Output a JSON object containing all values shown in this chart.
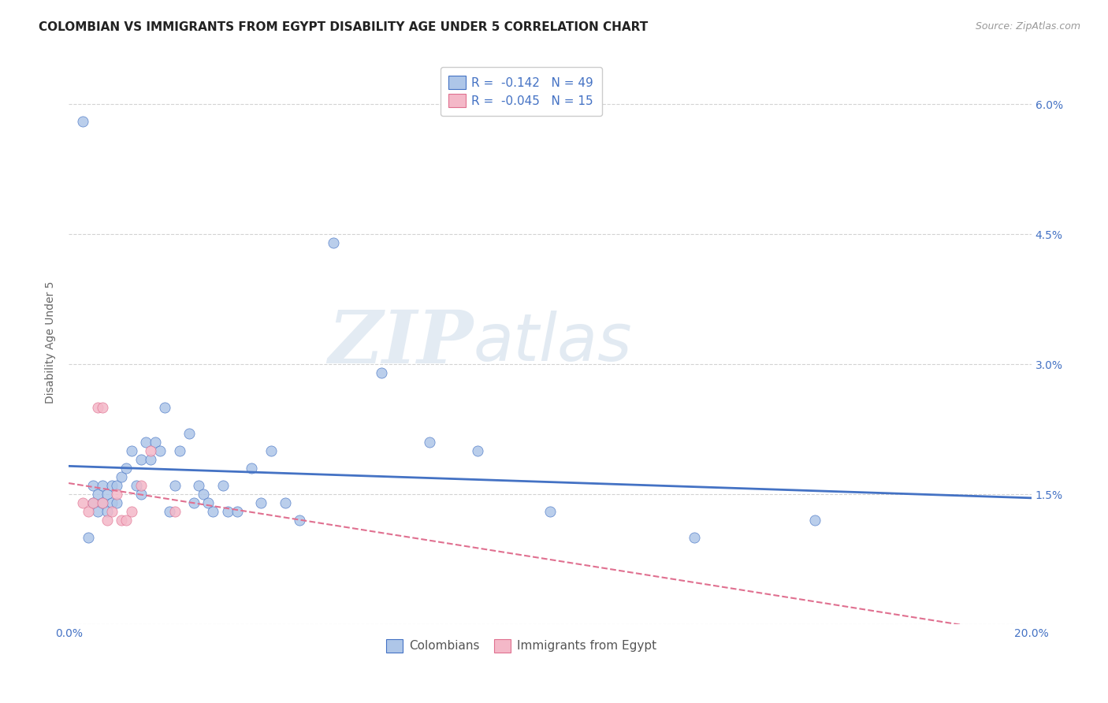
{
  "title": "COLOMBIAN VS IMMIGRANTS FROM EGYPT DISABILITY AGE UNDER 5 CORRELATION CHART",
  "source": "Source: ZipAtlas.com",
  "ylabel": "Disability Age Under 5",
  "xlim": [
    0.0,
    0.2
  ],
  "ylim": [
    0.0,
    0.065
  ],
  "xticks": [
    0.0,
    0.04,
    0.08,
    0.12,
    0.16,
    0.2
  ],
  "xticklabels": [
    "0.0%",
    "",
    "",
    "",
    "",
    "20.0%"
  ],
  "yticks": [
    0.0,
    0.015,
    0.03,
    0.045,
    0.06
  ],
  "yticklabels": [
    "",
    "1.5%",
    "3.0%",
    "4.5%",
    "6.0%"
  ],
  "colombians_x": [
    0.003,
    0.004,
    0.005,
    0.005,
    0.006,
    0.006,
    0.007,
    0.007,
    0.008,
    0.008,
    0.009,
    0.009,
    0.01,
    0.01,
    0.011,
    0.012,
    0.013,
    0.014,
    0.015,
    0.015,
    0.016,
    0.017,
    0.018,
    0.019,
    0.02,
    0.021,
    0.022,
    0.023,
    0.025,
    0.026,
    0.027,
    0.028,
    0.029,
    0.03,
    0.032,
    0.033,
    0.035,
    0.038,
    0.04,
    0.042,
    0.045,
    0.048,
    0.055,
    0.065,
    0.075,
    0.085,
    0.1,
    0.13,
    0.155
  ],
  "colombians_y": [
    0.058,
    0.01,
    0.016,
    0.014,
    0.015,
    0.013,
    0.016,
    0.014,
    0.015,
    0.013,
    0.016,
    0.014,
    0.016,
    0.014,
    0.017,
    0.018,
    0.02,
    0.016,
    0.019,
    0.015,
    0.021,
    0.019,
    0.021,
    0.02,
    0.025,
    0.013,
    0.016,
    0.02,
    0.022,
    0.014,
    0.016,
    0.015,
    0.014,
    0.013,
    0.016,
    0.013,
    0.013,
    0.018,
    0.014,
    0.02,
    0.014,
    0.012,
    0.044,
    0.029,
    0.021,
    0.02,
    0.013,
    0.01,
    0.012
  ],
  "egypt_x": [
    0.003,
    0.004,
    0.005,
    0.006,
    0.007,
    0.007,
    0.008,
    0.009,
    0.01,
    0.011,
    0.012,
    0.013,
    0.015,
    0.017,
    0.022
  ],
  "egypt_y": [
    0.014,
    0.013,
    0.014,
    0.025,
    0.025,
    0.014,
    0.012,
    0.013,
    0.015,
    0.012,
    0.012,
    0.013,
    0.016,
    0.02,
    0.013
  ],
  "col_R": "-0.142",
  "col_N": "49",
  "egypt_R": "-0.045",
  "egypt_N": "15",
  "col_color": "#aec6e8",
  "egypt_color": "#f4b8c8",
  "col_line_color": "#4472c4",
  "egypt_line_color": "#e07090",
  "watermark_zip": "ZIP",
  "watermark_atlas": "atlas",
  "background_color": "#ffffff",
  "grid_color": "#c8c8c8",
  "title_fontsize": 11,
  "label_fontsize": 10,
  "tick_fontsize": 10,
  "legend_fontsize": 11,
  "source_fontsize": 9
}
